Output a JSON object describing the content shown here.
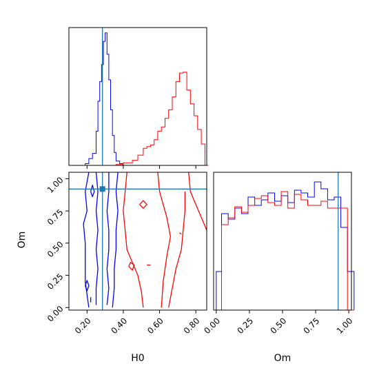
{
  "chart_data": {
    "type": "corner",
    "parameters": [
      "H0",
      "Om"
    ],
    "truth": {
      "H0": 0.285,
      "Om": 0.92,
      "color": "#1f77b4"
    },
    "colors": {
      "blue": "#0000ff",
      "red": "#ff0000",
      "truth": "#1f77b4"
    },
    "panels": [
      {
        "id": "hist-H0",
        "type": "step-histogram",
        "xlim": [
          0.1,
          0.86
        ],
        "xticks": [
          0.2,
          0.4,
          0.6,
          0.8
        ],
        "series": [
          {
            "color": "#0000ff",
            "x": [
              0.19,
              0.21,
              0.23,
              0.25,
              0.26,
              0.27,
              0.28,
              0.29,
              0.3,
              0.31,
              0.32,
              0.33,
              0.34,
              0.35,
              0.36,
              0.38,
              0.4
            ],
            "values": [
              2,
              8,
              14,
              40,
              75,
              98,
              118,
              145,
              155,
              130,
              100,
              65,
              35,
              15,
              5,
              2,
              0
            ]
          },
          {
            "color": "#ff0000",
            "x": [
              0.36,
              0.4,
              0.45,
              0.48,
              0.51,
              0.53,
              0.55,
              0.57,
              0.59,
              0.61,
              0.63,
              0.65,
              0.67,
              0.69,
              0.71,
              0.73,
              0.75,
              0.77,
              0.79,
              0.81,
              0.83,
              0.85
            ],
            "values": [
              1,
              3,
              6,
              12,
              20,
              22,
              24,
              30,
              40,
              45,
              55,
              65,
              80,
              98,
              108,
              109,
              88,
              72,
              58,
              42,
              25,
              0
            ]
          }
        ]
      },
      {
        "id": "contour-H0-Om",
        "type": "contour",
        "xlabel": "H0",
        "ylabel": "Om",
        "xlim": [
          0.1,
          0.86
        ],
        "ylim": [
          -0.02,
          1.05
        ],
        "xticks": [
          0.2,
          0.4,
          0.6,
          0.8
        ],
        "yticks": [
          0.0,
          0.25,
          0.5,
          0.75,
          1.0
        ],
        "series": [
          {
            "color": "#0000ff",
            "level": "outer-left",
            "points": [
              [
                0.21,
                1.05
              ],
              [
                0.19,
                0.9
              ],
              [
                0.2,
                0.75
              ],
              [
                0.18,
                0.65
              ],
              [
                0.19,
                0.5
              ],
              [
                0.19,
                0.35
              ],
              [
                0.19,
                0.2
              ],
              [
                0.21,
                0.0
              ]
            ]
          },
          {
            "color": "#0000ff",
            "level": "outer-right",
            "points": [
              [
                0.37,
                1.05
              ],
              [
                0.36,
                0.9
              ],
              [
                0.37,
                0.75
              ],
              [
                0.36,
                0.6
              ],
              [
                0.36,
                0.45
              ],
              [
                0.35,
                0.3
              ],
              [
                0.35,
                0.15
              ],
              [
                0.34,
                0.0
              ]
            ]
          },
          {
            "color": "#0000ff",
            "level": "inner-left",
            "points": [
              [
                0.25,
                1.05
              ],
              [
                0.26,
                0.9
              ],
              [
                0.25,
                0.75
              ],
              [
                0.26,
                0.6
              ],
              [
                0.25,
                0.45
              ],
              [
                0.26,
                0.3
              ],
              [
                0.25,
                0.15
              ],
              [
                0.25,
                0.02
              ]
            ]
          },
          {
            "color": "#0000ff",
            "level": "inner-right",
            "points": [
              [
                0.32,
                1.05
              ],
              [
                0.32,
                0.9
              ],
              [
                0.31,
                0.75
              ],
              [
                0.32,
                0.6
              ],
              [
                0.32,
                0.45
              ],
              [
                0.31,
                0.3
              ],
              [
                0.32,
                0.15
              ],
              [
                0.31,
                0.02
              ]
            ]
          },
          {
            "color": "#0000ff",
            "level": "island",
            "points": [
              [
                0.19,
                0.17
              ],
              [
                0.2,
                0.21
              ],
              [
                0.21,
                0.17
              ],
              [
                0.2,
                0.13
              ],
              [
                0.19,
                0.17
              ]
            ]
          },
          {
            "color": "#0000ff",
            "level": "island",
            "points": [
              [
                0.22,
                0.9
              ],
              [
                0.23,
                0.95
              ],
              [
                0.24,
                0.9
              ],
              [
                0.23,
                0.86
              ],
              [
                0.22,
                0.9
              ]
            ]
          },
          {
            "color": "#0000ff",
            "level": "island",
            "points": [
              [
                0.22,
                0.08
              ],
              [
                0.22,
                0.04
              ]
            ]
          },
          {
            "color": "#ff0000",
            "level": "outer-left",
            "points": [
              [
                0.42,
                1.05
              ],
              [
                0.41,
                0.9
              ],
              [
                0.4,
                0.75
              ],
              [
                0.41,
                0.6
              ],
              [
                0.42,
                0.45
              ],
              [
                0.45,
                0.35
              ],
              [
                0.48,
                0.25
              ],
              [
                0.5,
                0.12
              ],
              [
                0.51,
                0.0
              ]
            ]
          },
          {
            "color": "#ff0000",
            "level": "outer-right",
            "points": [
              [
                0.76,
                1.05
              ],
              [
                0.77,
                0.9
              ],
              [
                0.8,
                0.8
              ],
              [
                0.83,
                0.7
              ],
              [
                0.86,
                0.6
              ]
            ]
          },
          {
            "color": "#ff0000",
            "level": "inner",
            "points": [
              [
                0.59,
                1.05
              ],
              [
                0.6,
                0.9
              ],
              [
                0.62,
                0.8
              ],
              [
                0.64,
                0.7
              ],
              [
                0.66,
                0.55
              ],
              [
                0.64,
                0.4
              ],
              [
                0.62,
                0.2
              ],
              [
                0.61,
                0.0
              ]
            ]
          },
          {
            "color": "#ff0000",
            "level": "inner-right",
            "points": [
              [
                0.74,
                0.9
              ],
              [
                0.74,
                0.75
              ],
              [
                0.73,
                0.6
              ],
              [
                0.72,
                0.45
              ],
              [
                0.69,
                0.3
              ],
              [
                0.67,
                0.15
              ],
              [
                0.65,
                0.0
              ]
            ]
          },
          {
            "color": "#ff0000",
            "level": "island",
            "points": [
              [
                0.49,
                0.8
              ],
              [
                0.51,
                0.83
              ],
              [
                0.53,
                0.8
              ],
              [
                0.51,
                0.77
              ],
              [
                0.49,
                0.8
              ]
            ]
          },
          {
            "color": "#ff0000",
            "level": "island",
            "points": [
              [
                0.43,
                0.32
              ],
              [
                0.44,
                0.35
              ],
              [
                0.46,
                0.33
              ],
              [
                0.45,
                0.29
              ],
              [
                0.43,
                0.32
              ]
            ]
          },
          {
            "color": "#ff0000",
            "level": "island",
            "points": [
              [
                0.53,
                0.33
              ],
              [
                0.55,
                0.33
              ]
            ]
          },
          {
            "color": "#ff0000",
            "level": "island",
            "points": [
              [
                0.71,
                0.58
              ],
              [
                0.72,
                0.57
              ]
            ]
          }
        ]
      },
      {
        "id": "hist-Om",
        "type": "step-histogram",
        "xlabel": "Om",
        "xlim": [
          -0.02,
          1.02
        ],
        "xticks": [
          0.0,
          0.25,
          0.5,
          0.75,
          1.0
        ],
        "series": [
          {
            "color": "#0000ff",
            "x": [
              0.0,
              0.04,
              0.09,
              0.14,
              0.19,
              0.24,
              0.29,
              0.34,
              0.39,
              0.44,
              0.49,
              0.54,
              0.59,
              0.64,
              0.69,
              0.74,
              0.79,
              0.84,
              0.89,
              0.94,
              0.99
            ],
            "values": [
              0.28,
              0.7,
              0.66,
              0.74,
              0.7,
              0.82,
              0.76,
              0.8,
              0.85,
              0.79,
              0.83,
              0.78,
              0.87,
              0.85,
              0.82,
              0.93,
              0.88,
              0.8,
              0.82,
              0.6,
              0.28
            ]
          },
          {
            "color": "#ff0000",
            "x": [
              0.0,
              0.04,
              0.09,
              0.14,
              0.19,
              0.24,
              0.29,
              0.34,
              0.39,
              0.44,
              0.49,
              0.54,
              0.59,
              0.64,
              0.69,
              0.74,
              0.79,
              0.84,
              0.89,
              0.94,
              0.99
            ],
            "values": [
              0.0,
              0.62,
              0.67,
              0.75,
              0.71,
              0.76,
              0.81,
              0.83,
              0.78,
              0.76,
              0.86,
              0.74,
              0.84,
              0.8,
              0.76,
              0.76,
              0.79,
              0.74,
              0.74,
              0.74,
              0.0
            ]
          }
        ]
      }
    ]
  }
}
